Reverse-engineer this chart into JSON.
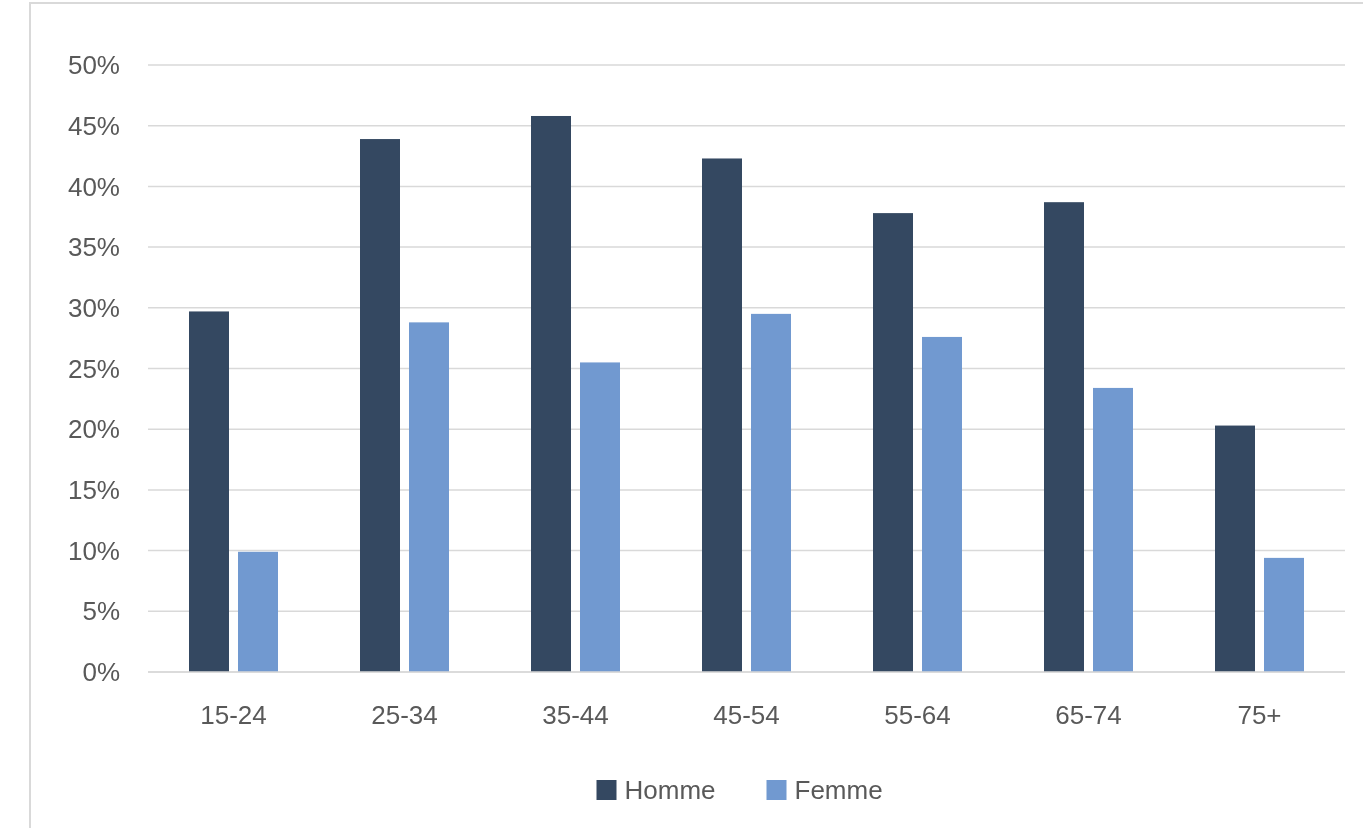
{
  "chart_data": {
    "type": "bar",
    "categories": [
      "15-24",
      "25-34",
      "35-44",
      "45-54",
      "55-64",
      "65-74",
      "75+"
    ],
    "series": [
      {
        "name": "Homme",
        "color": "#344861",
        "values": [
          29.7,
          43.9,
          45.8,
          42.3,
          37.8,
          38.7,
          20.3
        ]
      },
      {
        "name": "Femme",
        "color": "#7199d0",
        "values": [
          9.9,
          28.8,
          25.5,
          29.5,
          27.6,
          23.4,
          9.4
        ]
      }
    ],
    "ylim": [
      0,
      50
    ],
    "yticks": [
      {
        "value": 0,
        "label": "0%"
      },
      {
        "value": 5,
        "label": "5%"
      },
      {
        "value": 10,
        "label": "10%"
      },
      {
        "value": 15,
        "label": "15%"
      },
      {
        "value": 20,
        "label": "20%"
      },
      {
        "value": 25,
        "label": "25%"
      },
      {
        "value": 30,
        "label": "30%"
      },
      {
        "value": 35,
        "label": "35%"
      },
      {
        "value": 40,
        "label": "40%"
      },
      {
        "value": 45,
        "label": "45%"
      },
      {
        "value": 50,
        "label": "50%"
      }
    ],
    "grid": "y",
    "legend": "bottom"
  }
}
